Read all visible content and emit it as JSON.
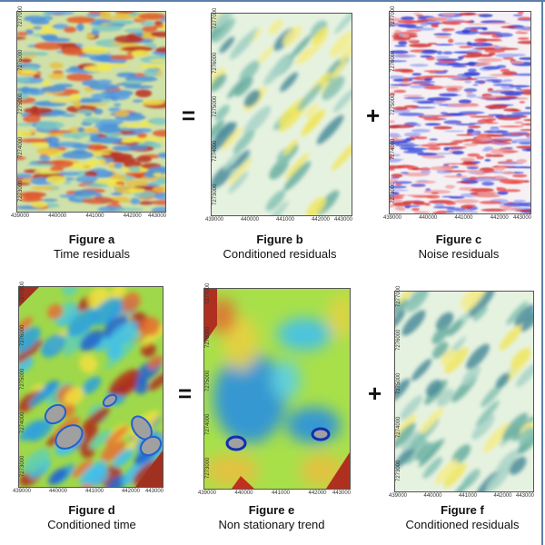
{
  "figures": [
    {
      "id": "a",
      "title": "Figure a",
      "subtitle": "Time residuals",
      "style": "time-residuals",
      "xticks": [
        "439000",
        "440000",
        "441000",
        "442000",
        "443000"
      ],
      "yticks": [
        "7273000",
        "7274000",
        "7275000",
        "7276000",
        "7277000"
      ]
    },
    {
      "id": "b",
      "title": "Figure b",
      "subtitle": "Conditioned residuals",
      "style": "conditioned-residuals",
      "xticks": [
        "439000",
        "440000",
        "441000",
        "442000",
        "443000"
      ],
      "yticks": [
        "7273000",
        "7274000",
        "7275000",
        "7276000",
        "7277000"
      ]
    },
    {
      "id": "c",
      "title": "Figure c",
      "subtitle": "Noise residuals",
      "style": "noise-residuals",
      "xticks": [
        "439000",
        "440000",
        "441000",
        "442000",
        "443000"
      ],
      "yticks": [
        "7273000",
        "7274000",
        "7275000",
        "7276000",
        "7277000"
      ]
    },
    {
      "id": "d",
      "title": "Figure d",
      "subtitle": "Conditioned time",
      "style": "conditioned-time",
      "xticks": [
        "439000",
        "440000",
        "441000",
        "442000",
        "443000"
      ],
      "yticks": [
        "7273000",
        "7274000",
        "7275000",
        "7276000",
        "7277000"
      ]
    },
    {
      "id": "e",
      "title": "Figure e",
      "subtitle": "Non stationary trend",
      "style": "non-stationary-trend",
      "xticks": [
        "439000",
        "440000",
        "441000",
        "442000",
        "443000"
      ],
      "yticks": [
        "7273000",
        "7274000",
        "7275000",
        "7276000",
        "7277000"
      ]
    },
    {
      "id": "f",
      "title": "Figure f",
      "subtitle": "Conditioned residuals",
      "style": "conditioned-residuals",
      "xticks": [
        "439000",
        "440000",
        "441000",
        "442000",
        "443000"
      ],
      "yticks": [
        "7273000",
        "7274000",
        "7275000",
        "7276000",
        "7277000"
      ]
    }
  ],
  "operators": {
    "row1_equals": "=",
    "row1_plus": "+",
    "row2_equals": "=",
    "row2_plus": "+"
  },
  "colors": {
    "frame": "#5b7fa8",
    "blue": "#4a90d9",
    "teal": "#7fbfb0",
    "yellow": "#f2e84a",
    "red": "#c0392b",
    "grey": "#a0a0a0"
  }
}
